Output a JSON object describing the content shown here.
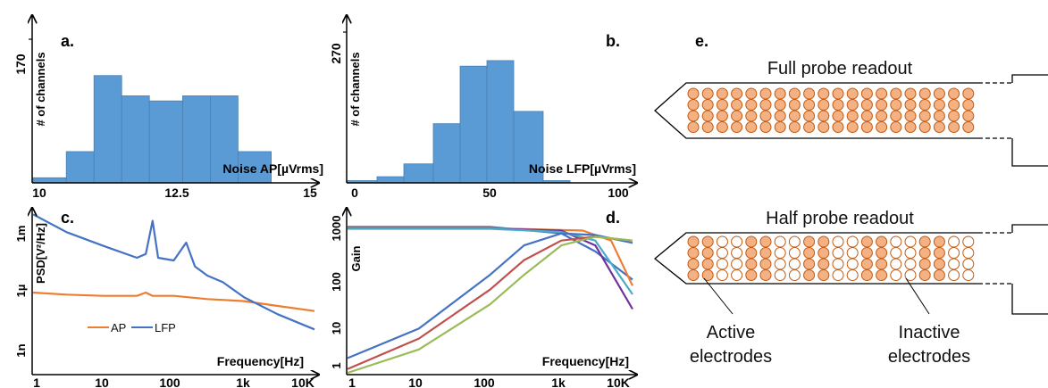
{
  "panels": {
    "a": {
      "label": "a."
    },
    "b": {
      "label": "b."
    },
    "c": {
      "label": "c."
    },
    "d": {
      "label": "d."
    },
    "e": {
      "label": "e."
    }
  },
  "chart_data": [
    {
      "id": "a",
      "type": "bar",
      "xlabel": "Noise AP[µVrms]",
      "ylabel": "# of channels",
      "xlim": [
        10,
        15
      ],
      "ylim": [
        0,
        170
      ],
      "xticks": [
        "10",
        "12.5",
        "15"
      ],
      "yticks": [
        "170"
      ],
      "bins": [
        {
          "x0": 10.0,
          "x1": 10.6,
          "value": 6
        },
        {
          "x0": 10.6,
          "x1": 11.1,
          "value": 37
        },
        {
          "x0": 11.1,
          "x1": 11.6,
          "value": 127
        },
        {
          "x0": 11.6,
          "x1": 12.1,
          "value": 103
        },
        {
          "x0": 12.1,
          "x1": 12.7,
          "value": 97
        },
        {
          "x0": 12.7,
          "x1": 13.2,
          "value": 103
        },
        {
          "x0": 13.2,
          "x1": 13.7,
          "value": 103
        },
        {
          "x0": 13.7,
          "x1": 14.3,
          "value": 37
        }
      ]
    },
    {
      "id": "b",
      "type": "bar",
      "xlabel": "Noise LFP[µVrms]",
      "ylabel": "# of channels",
      "xlim": [
        0,
        100
      ],
      "ylim": [
        0,
        270
      ],
      "xticks": [
        "0",
        "50",
        "100"
      ],
      "yticks": [
        "270"
      ],
      "bins": [
        {
          "x0": 0,
          "x1": 11,
          "value": 4
        },
        {
          "x0": 11,
          "x1": 21,
          "value": 11
        },
        {
          "x0": 21,
          "x1": 32,
          "value": 34
        },
        {
          "x0": 32,
          "x1": 42,
          "value": 106
        },
        {
          "x0": 42,
          "x1": 52,
          "value": 209
        },
        {
          "x0": 52,
          "x1": 62,
          "value": 219
        },
        {
          "x0": 62,
          "x1": 73,
          "value": 128
        },
        {
          "x0": 73,
          "x1": 83,
          "value": 4
        }
      ]
    },
    {
      "id": "c",
      "type": "line",
      "xlabel": "Frequency[Hz]",
      "ylabel": "PSD[V²/Hz]",
      "xscale": "log",
      "yscale": "log",
      "xlim": [
        1,
        10000
      ],
      "ylim": [
        1e-10,
        0.003
      ],
      "xticks": [
        "1",
        "10",
        "100",
        "1k",
        "10K"
      ],
      "yticks": [
        "1m",
        "1µ",
        "1n"
      ],
      "legend_position": "lower-left",
      "series": [
        {
          "name": "AP",
          "color": "#ed7d31",
          "points": [
            [
              1,
              5e-07
            ],
            [
              3,
              4e-07
            ],
            [
              10,
              3.5e-07
            ],
            [
              30,
              3.5e-07
            ],
            [
              40,
              5e-07
            ],
            [
              50,
              3.5e-07
            ],
            [
              100,
              3.5e-07
            ],
            [
              300,
              2.5e-07
            ],
            [
              1000,
              2e-07
            ],
            [
              3000,
              1.2e-07
            ],
            [
              10000,
              7e-08
            ]
          ]
        },
        {
          "name": "LFP",
          "color": "#4472c4",
          "points": [
            [
              1,
              0.002
            ],
            [
              3,
              0.0003
            ],
            [
              10,
              7e-05
            ],
            [
              30,
              2e-05
            ],
            [
              40,
              3e-05
            ],
            [
              50,
              0.001
            ],
            [
              60,
              2e-05
            ],
            [
              100,
              1.5e-05
            ],
            [
              150,
              0.0001
            ],
            [
              200,
              8e-06
            ],
            [
              300,
              3e-06
            ],
            [
              500,
              1.5e-06
            ],
            [
              1000,
              3e-07
            ],
            [
              3000,
              5e-08
            ],
            [
              10000,
              1e-08
            ]
          ]
        }
      ]
    },
    {
      "id": "d",
      "type": "line",
      "xlabel": "Frequency[Hz]",
      "ylabel": "Gain",
      "xscale": "log",
      "yscale": "log",
      "xlim": [
        1,
        10000
      ],
      "ylim": [
        1,
        1600
      ],
      "xticks": [
        "1",
        "10",
        "100",
        "1k",
        "10K"
      ],
      "yticks": [
        "1000",
        "100",
        "10",
        "1"
      ],
      "series": [
        {
          "color": "#4472c4",
          "points": [
            [
              1,
              950
            ],
            [
              100,
              950
            ],
            [
              1000,
              700
            ],
            [
              3000,
              300
            ],
            [
              10000,
              80
            ]
          ]
        },
        {
          "color": "#ed7d31",
          "points": [
            [
              1,
              900
            ],
            [
              100,
              900
            ],
            [
              2000,
              800
            ],
            [
              5000,
              500
            ],
            [
              10000,
              60
            ]
          ]
        },
        {
          "color": "#7030a0",
          "points": [
            [
              1,
              880
            ],
            [
              100,
              880
            ],
            [
              1000,
              800
            ],
            [
              3000,
              400
            ],
            [
              10000,
              20
            ]
          ]
        },
        {
          "color": "#4bacc6",
          "points": [
            [
              1,
              870
            ],
            [
              100,
              870
            ],
            [
              1000,
              750
            ],
            [
              3000,
              500
            ],
            [
              10000,
              40
            ]
          ]
        },
        {
          "color": "#4472c4",
          "points": [
            [
              1,
              2
            ],
            [
              10,
              8
            ],
            [
              100,
              100
            ],
            [
              300,
              400
            ],
            [
              1000,
              700
            ],
            [
              3000,
              650
            ],
            [
              10000,
              450
            ]
          ]
        },
        {
          "color": "#c0504d",
          "points": [
            [
              1,
              1.2
            ],
            [
              10,
              5
            ],
            [
              100,
              50
            ],
            [
              300,
              200
            ],
            [
              1000,
              500
            ],
            [
              3000,
              600
            ],
            [
              10000,
              500
            ]
          ]
        },
        {
          "color": "#9bbb59",
          "points": [
            [
              1,
              0.8
            ],
            [
              10,
              3
            ],
            [
              100,
              25
            ],
            [
              300,
              100
            ],
            [
              1000,
              400
            ],
            [
              3000,
              600
            ],
            [
              10000,
              500
            ]
          ]
        }
      ]
    }
  ],
  "diagram": {
    "full_title": "Full probe readout",
    "half_title": "Half probe readout",
    "active_label_1": "Active",
    "active_label_2": "electrodes",
    "inactive_label_1": "Inactive",
    "inactive_label_2": "electrodes",
    "electrode_color": "#f4b183",
    "electrode_stroke": "#c55a11",
    "columns": 20,
    "rows": 4
  }
}
